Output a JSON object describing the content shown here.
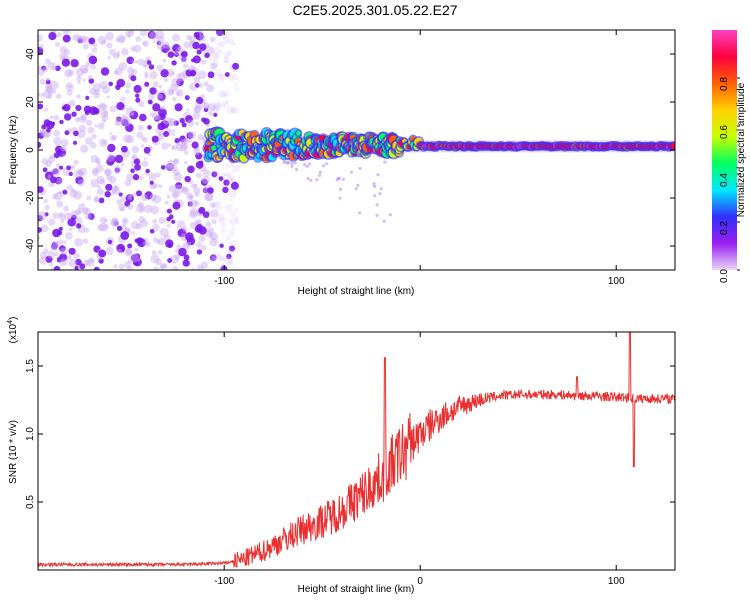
{
  "title": "C2E5.2025.301.05.22.E27",
  "chart_data": [
    {
      "type": "heatmap",
      "name": "spectrogram",
      "xlabel": "Height of straight line (km)",
      "ylabel": "Frequency (Hz)",
      "xlim": [
        -195,
        130
      ],
      "ylim": [
        -50,
        50
      ],
      "xticks": [
        -100,
        0,
        100
      ],
      "xtick_labels": [
        "-100",
        "",
        "100"
      ],
      "yticks": [
        -40,
        -20,
        0,
        20,
        40
      ],
      "ytick_labels": [
        "-40",
        "-20",
        "0",
        "20",
        "40"
      ],
      "colorbar": {
        "label": "Normalized spectral amplitude",
        "range": [
          0,
          1
        ],
        "ticks": [
          0.0,
          0.2,
          0.4,
          0.6,
          0.8
        ],
        "tick_labels": [
          "0.0",
          "0.2",
          "0.4",
          "0.6",
          "0.8"
        ],
        "colors": [
          "#e8d8f8",
          "#9a20f0",
          "#3030ff",
          "#00e8ff",
          "#00ff60",
          "#c8ff00",
          "#ffd000",
          "#ff6000",
          "#ff0040",
          "#ff40c0"
        ]
      },
      "carrier_frequency_hz": 1.5,
      "noise_region_until_km": -105
    },
    {
      "type": "line",
      "name": "snr",
      "xlabel": "Height of straight line (km)",
      "ylabel": "SNR (10 * v/v)",
      "yscale_label": "(x10",
      "yscale_exp": "4",
      "xlim": [
        -195,
        130
      ],
      "ylim": [
        0,
        1.75
      ],
      "xticks": [
        -100,
        0,
        100
      ],
      "xtick_labels": [
        "-100",
        "0",
        "100"
      ],
      "yticks": [
        0.5,
        1.0,
        1.5
      ],
      "ytick_labels": [
        "0.5",
        "1.0",
        "1.5"
      ],
      "line_color": "#e83030",
      "series": [
        {
          "name": "SNR",
          "x": [
            -195,
            -120,
            -100,
            -90,
            -80,
            -70,
            -60,
            -50,
            -40,
            -30,
            -20,
            -10,
            0,
            10,
            20,
            30,
            40,
            50,
            60,
            70,
            80,
            90,
            100,
            105,
            110,
            120,
            130
          ],
          "values": [
            0.04,
            0.04,
            0.05,
            0.08,
            0.14,
            0.22,
            0.3,
            0.36,
            0.44,
            0.55,
            0.68,
            0.85,
            1.0,
            1.12,
            1.2,
            1.25,
            1.28,
            1.29,
            1.29,
            1.29,
            1.28,
            1.28,
            1.27,
            1.27,
            1.26,
            1.26,
            1.26
          ]
        }
      ],
      "spikes": [
        {
          "x": -18,
          "value": 1.56
        },
        {
          "x": 80,
          "value": 1.42
        },
        {
          "x": 107,
          "value": 1.78
        },
        {
          "x": 109,
          "value": 0.76
        }
      ]
    }
  ]
}
